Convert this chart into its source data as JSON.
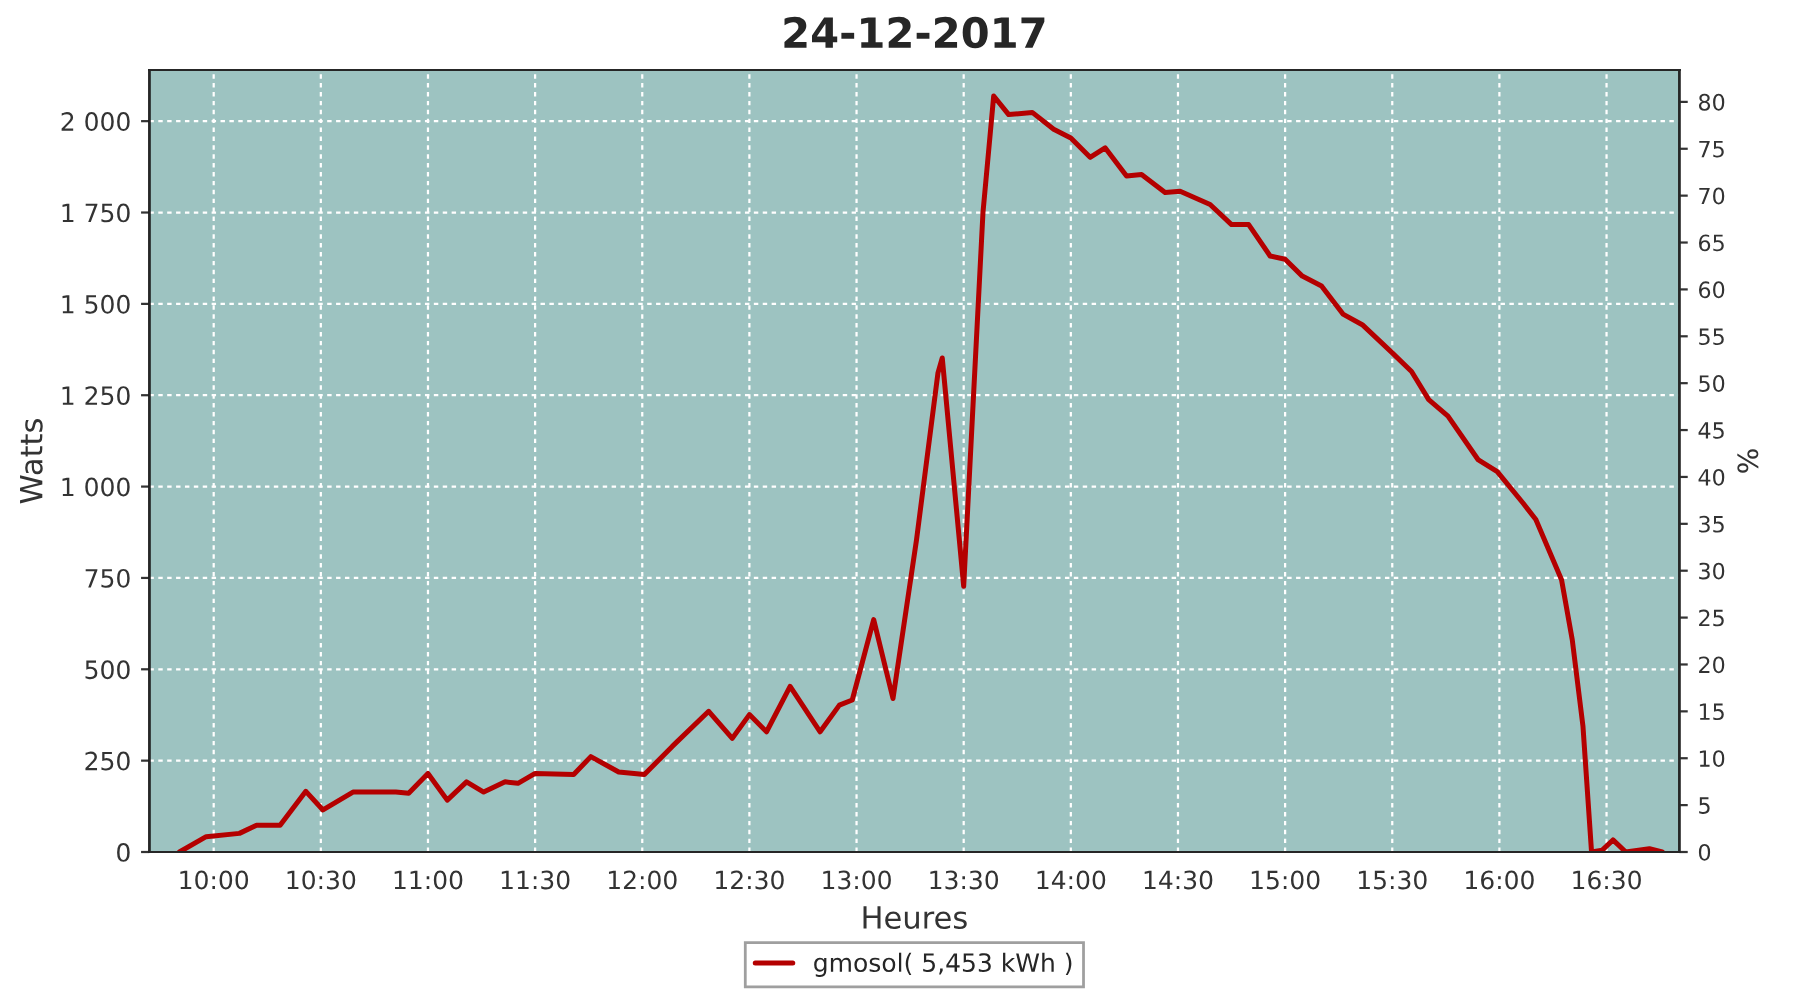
{
  "chart_data": {
    "type": "line",
    "title": "24-12-2017",
    "xlabel": "Heures",
    "ylabel": "Watts",
    "y2label": "%",
    "x": [
      9.84,
      9.965,
      10.12,
      10.2,
      10.31,
      10.43,
      10.51,
      10.65,
      10.85,
      10.91,
      11.0,
      11.09,
      11.18,
      11.26,
      11.36,
      11.42,
      11.5,
      11.68,
      11.76,
      11.89,
      12.01,
      12.14,
      12.31,
      12.42,
      12.5,
      12.58,
      12.69,
      12.83,
      12.92,
      12.98,
      13.08,
      13.17,
      13.28,
      13.38,
      13.4,
      13.5,
      13.59,
      13.64,
      13.71,
      13.82,
      13.92,
      14.0,
      14.09,
      14.16,
      14.26,
      14.33,
      14.44,
      14.51,
      14.65,
      14.75,
      14.83,
      14.93,
      15.0,
      15.08,
      15.17,
      15.27,
      15.36,
      15.5,
      15.59,
      15.67,
      15.76,
      15.9,
      15.99,
      16.11,
      16.17,
      16.29,
      16.34,
      16.39,
      16.43,
      16.48,
      16.53,
      16.59,
      16.7,
      16.76
    ],
    "series": [
      {
        "name": "gmosol( 5,453 kWh )",
        "color": "#b40000",
        "values": [
          0,
          42,
          51,
          73,
          73,
          166,
          115,
          164,
          164,
          161,
          215,
          142,
          192,
          164,
          192,
          188,
          215,
          212,
          261,
          219,
          212,
          289,
          385,
          311,
          376,
          329,
          453,
          329,
          402,
          416,
          636,
          420,
          855,
          1311,
          1352,
          727,
          1750,
          2069,
          2018,
          2024,
          1978,
          1954,
          1901,
          1927,
          1850,
          1854,
          1805,
          1808,
          1772,
          1717,
          1717,
          1631,
          1622,
          1576,
          1549,
          1472,
          1443,
          1366,
          1315,
          1238,
          1193,
          1074,
          1041,
          955,
          910,
          745,
          581,
          344,
          0,
          5,
          33,
          0,
          9,
          0
        ]
      }
    ],
    "xlim": [
      9.7,
      16.84
    ],
    "xticks": [
      {
        "value": 10,
        "label": "10:00"
      },
      {
        "value": 10.5,
        "label": "10:30"
      },
      {
        "value": 11,
        "label": "11:00"
      },
      {
        "value": 11.5,
        "label": "11:30"
      },
      {
        "value": 12,
        "label": "12:00"
      },
      {
        "value": 12.5,
        "label": "12:30"
      },
      {
        "value": 13,
        "label": "13:00"
      },
      {
        "value": 13.5,
        "label": "13:30"
      },
      {
        "value": 14,
        "label": "14:00"
      },
      {
        "value": 14.5,
        "label": "14:30"
      },
      {
        "value": 15,
        "label": "15:00"
      },
      {
        "value": 15.5,
        "label": "15:30"
      },
      {
        "value": 16,
        "label": "16:00"
      },
      {
        "value": 16.5,
        "label": "16:30"
      }
    ],
    "ylim": [
      0,
      2140
    ],
    "yticks": [
      0,
      250,
      500,
      750,
      {
        "value": 1000,
        "label": "1 000"
      },
      {
        "value": 1250,
        "label": "1 250"
      },
      {
        "value": 1500,
        "label": "1 500"
      },
      {
        "value": 1750,
        "label": "1 750"
      },
      {
        "value": 2000,
        "label": "2 000"
      }
    ],
    "y2lim": [
      0,
      83.4
    ],
    "y2ticks": [
      0,
      5,
      10,
      15,
      20,
      25,
      30,
      35,
      40,
      45,
      50,
      55,
      60,
      65,
      70,
      75,
      80
    ],
    "grid": true,
    "legend": "bottom",
    "marker": "none",
    "line_style": "solid"
  }
}
